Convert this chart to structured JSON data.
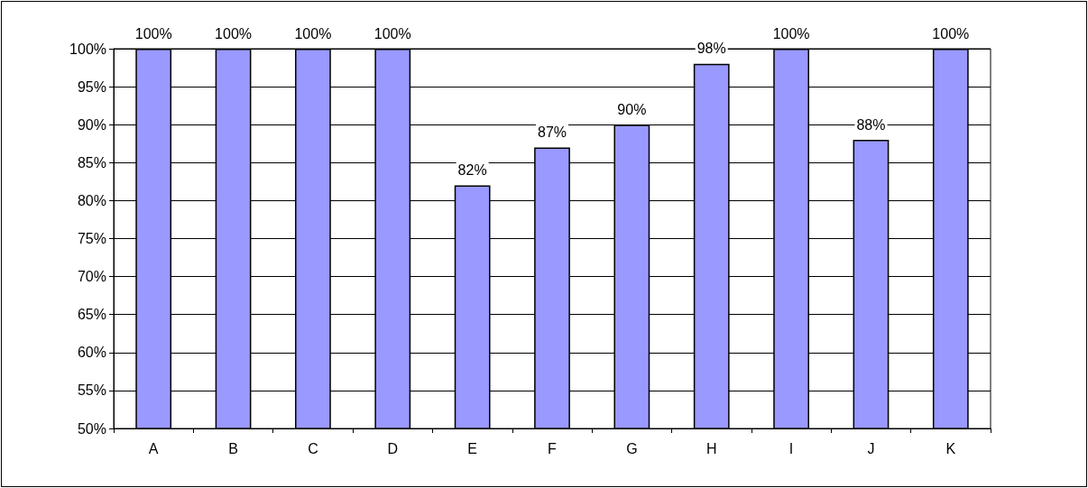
{
  "chart_data": {
    "type": "bar",
    "categories": [
      "A",
      "B",
      "C",
      "D",
      "E",
      "F",
      "G",
      "H",
      "I",
      "J",
      "K"
    ],
    "values": [
      100,
      100,
      100,
      100,
      82,
      87,
      90,
      98,
      100,
      88,
      100
    ],
    "color": "#9999ff",
    "value_labels": [
      "100%",
      "100%",
      "100%",
      "100%",
      "82%",
      "87%",
      "90%",
      "98%",
      "100%",
      "88%",
      "100%"
    ],
    "ylim": [
      50,
      100
    ],
    "yticks": [
      {
        "value": 50,
        "label": "50%"
      },
      {
        "value": 55,
        "label": "55%"
      },
      {
        "value": 60,
        "label": "60%"
      },
      {
        "value": 65,
        "label": "65%"
      },
      {
        "value": 70,
        "label": "70%"
      },
      {
        "value": 75,
        "label": "75%"
      },
      {
        "value": 80,
        "label": "80%"
      },
      {
        "value": 85,
        "label": "85%"
      },
      {
        "value": 90,
        "label": "90%"
      },
      {
        "value": 95,
        "label": "95%"
      },
      {
        "value": 100,
        "label": "100%"
      }
    ],
    "grid": "y"
  }
}
